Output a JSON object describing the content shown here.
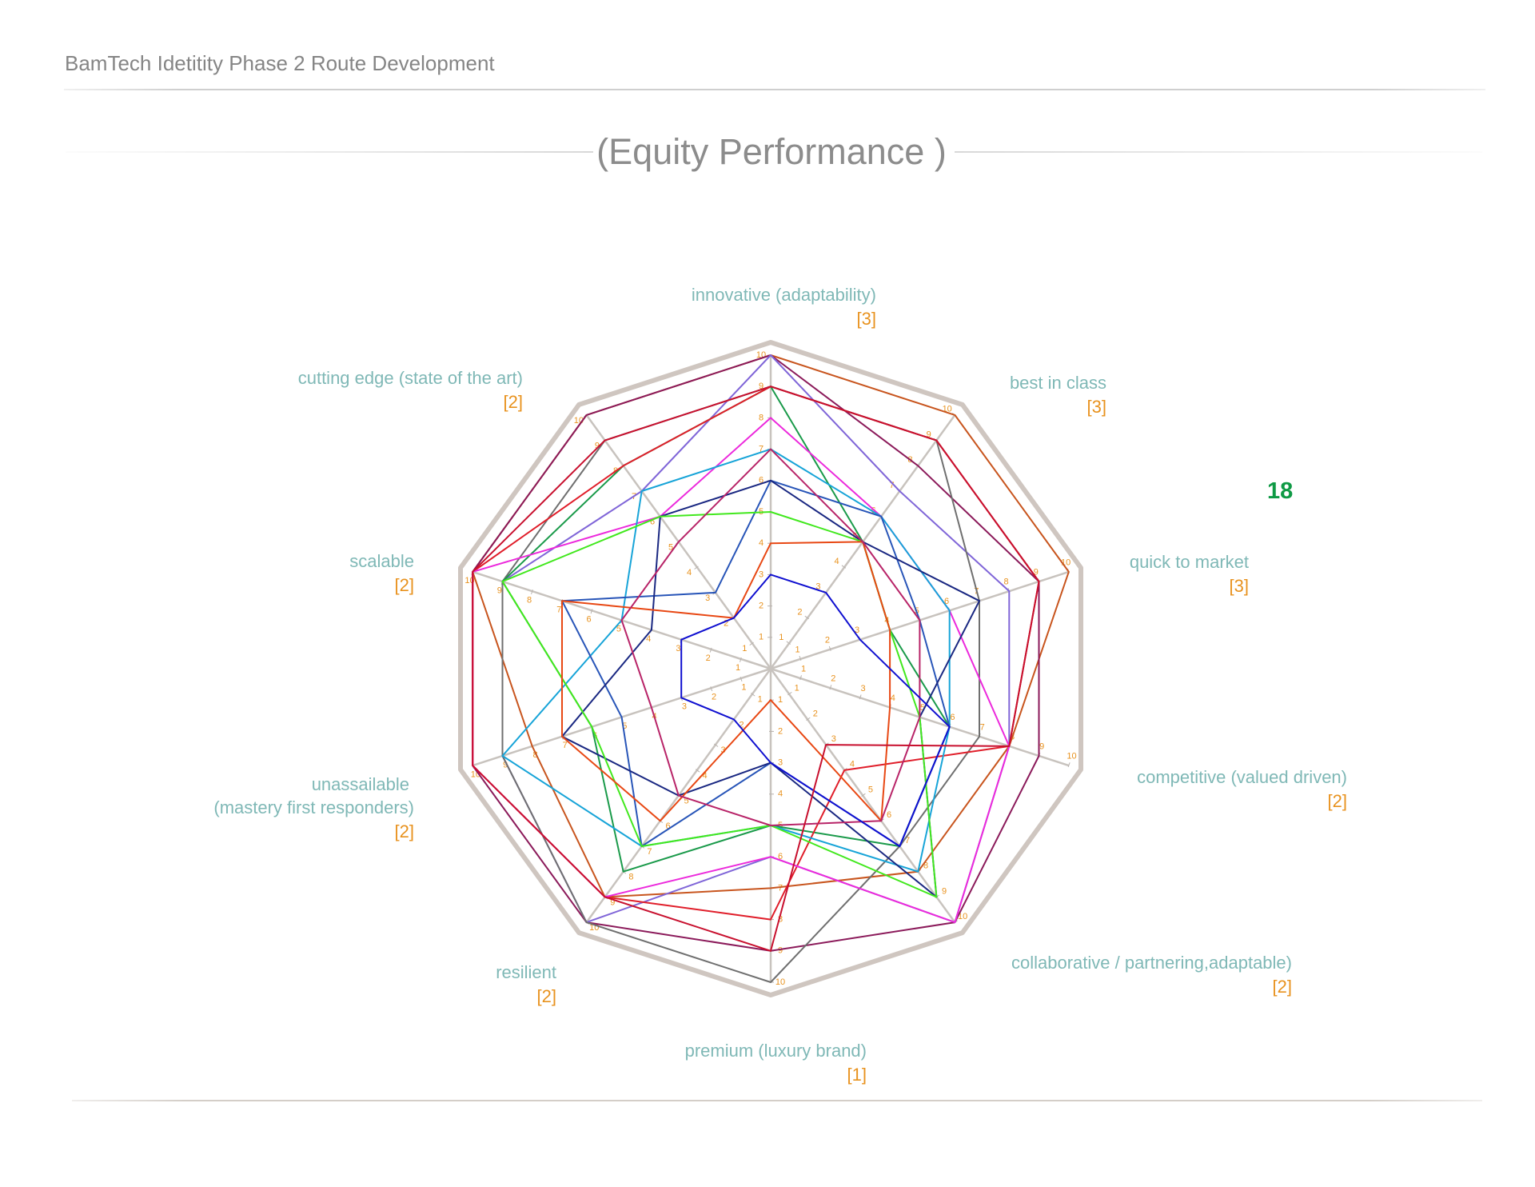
{
  "page": {
    "doc_title": "BamTech Idetitity Phase 2 Route Development",
    "chart_title": "(Equity Performance )",
    "score_badge": "18"
  },
  "colors": {
    "axis_label": "#7fb8b6",
    "weight_label": "#e8921e",
    "tick_label": "#e8921e",
    "score_badge": "#0f9a45",
    "frame": "#cfc6c0",
    "spoke": "#c8c3be"
  },
  "chart_data": {
    "type": "radar",
    "title": "(Equity Performance )",
    "rmax": 10,
    "ticks": [
      "1",
      "2",
      "3",
      "4",
      "5",
      "6",
      "7",
      "8",
      "9",
      "10"
    ],
    "axes": [
      {
        "label": "innovative (adaptability)",
        "weight": "[3]"
      },
      {
        "label": "best in class",
        "weight": "[3]"
      },
      {
        "label": "quick to market",
        "weight": "[3]"
      },
      {
        "label": "competitive (valued driven)",
        "weight": "[2]"
      },
      {
        "label": "collaborative / partnering,adaptable)",
        "weight": "[2]"
      },
      {
        "label": "premium (luxury brand)",
        "weight": "[1]"
      },
      {
        "label": "resilient",
        "weight": "[2]"
      },
      {
        "label": "unassailable (mastery first responders)",
        "weight": "[2]"
      },
      {
        "label": "scalable",
        "weight": "[2]"
      },
      {
        "label": "cutting edge (state of the art)",
        "weight": "[2]"
      }
    ],
    "series": [
      {
        "color": "#c8551e",
        "values": [
          10,
          10,
          10,
          8,
          8,
          7,
          9,
          8,
          10,
          10
        ]
      },
      {
        "color": "#8b1a5a",
        "values": [
          10,
          8,
          9,
          9,
          10,
          9,
          10,
          10,
          10,
          10
        ]
      },
      {
        "color": "#8066d8",
        "values": [
          10,
          7,
          8,
          8,
          10,
          6,
          10,
          9,
          9,
          7
        ]
      },
      {
        "color": "#6f6f6f",
        "values": [
          9,
          9,
          7,
          7,
          7,
          10,
          10,
          9,
          9,
          9
        ]
      },
      {
        "color": "#1a9a4a",
        "values": [
          9,
          5,
          4,
          6,
          7,
          5,
          8,
          6,
          9,
          8
        ]
      },
      {
        "color": "#e01e2a",
        "values": [
          9,
          9,
          9,
          8,
          4,
          8,
          9,
          10,
          10,
          8
        ]
      },
      {
        "color": "#ec2adc",
        "values": [
          8,
          6,
          6,
          8,
          10,
          6,
          9,
          10,
          10,
          6
        ]
      },
      {
        "color": "#17a4d8",
        "values": [
          7,
          6,
          6,
          6,
          8,
          5,
          7,
          9,
          5,
          7
        ]
      },
      {
        "color": "#2855b8",
        "values": [
          6,
          6,
          5,
          6,
          7,
          3,
          7,
          5,
          7,
          3
        ]
      },
      {
        "color": "#1a2882",
        "values": [
          6,
          5,
          7,
          5,
          9,
          3,
          5,
          7,
          4,
          6
        ]
      },
      {
        "color": "#42e81e",
        "values": [
          5,
          5,
          4,
          5,
          9,
          5,
          7,
          6,
          9,
          6
        ]
      },
      {
        "color": "#e84814",
        "values": [
          4,
          5,
          4,
          4,
          6,
          1,
          6,
          7,
          7,
          2
        ]
      },
      {
        "color": "#b82468",
        "values": [
          7,
          5,
          5,
          5,
          6,
          5,
          5,
          4,
          5,
          5
        ]
      },
      {
        "color": "#1010d0",
        "values": [
          3,
          3,
          3,
          6,
          7,
          3,
          2,
          3,
          3,
          2
        ]
      },
      {
        "color": "#c8102e",
        "values": [
          9,
          9,
          9,
          8,
          3,
          9,
          9,
          10,
          10,
          9
        ]
      }
    ]
  }
}
